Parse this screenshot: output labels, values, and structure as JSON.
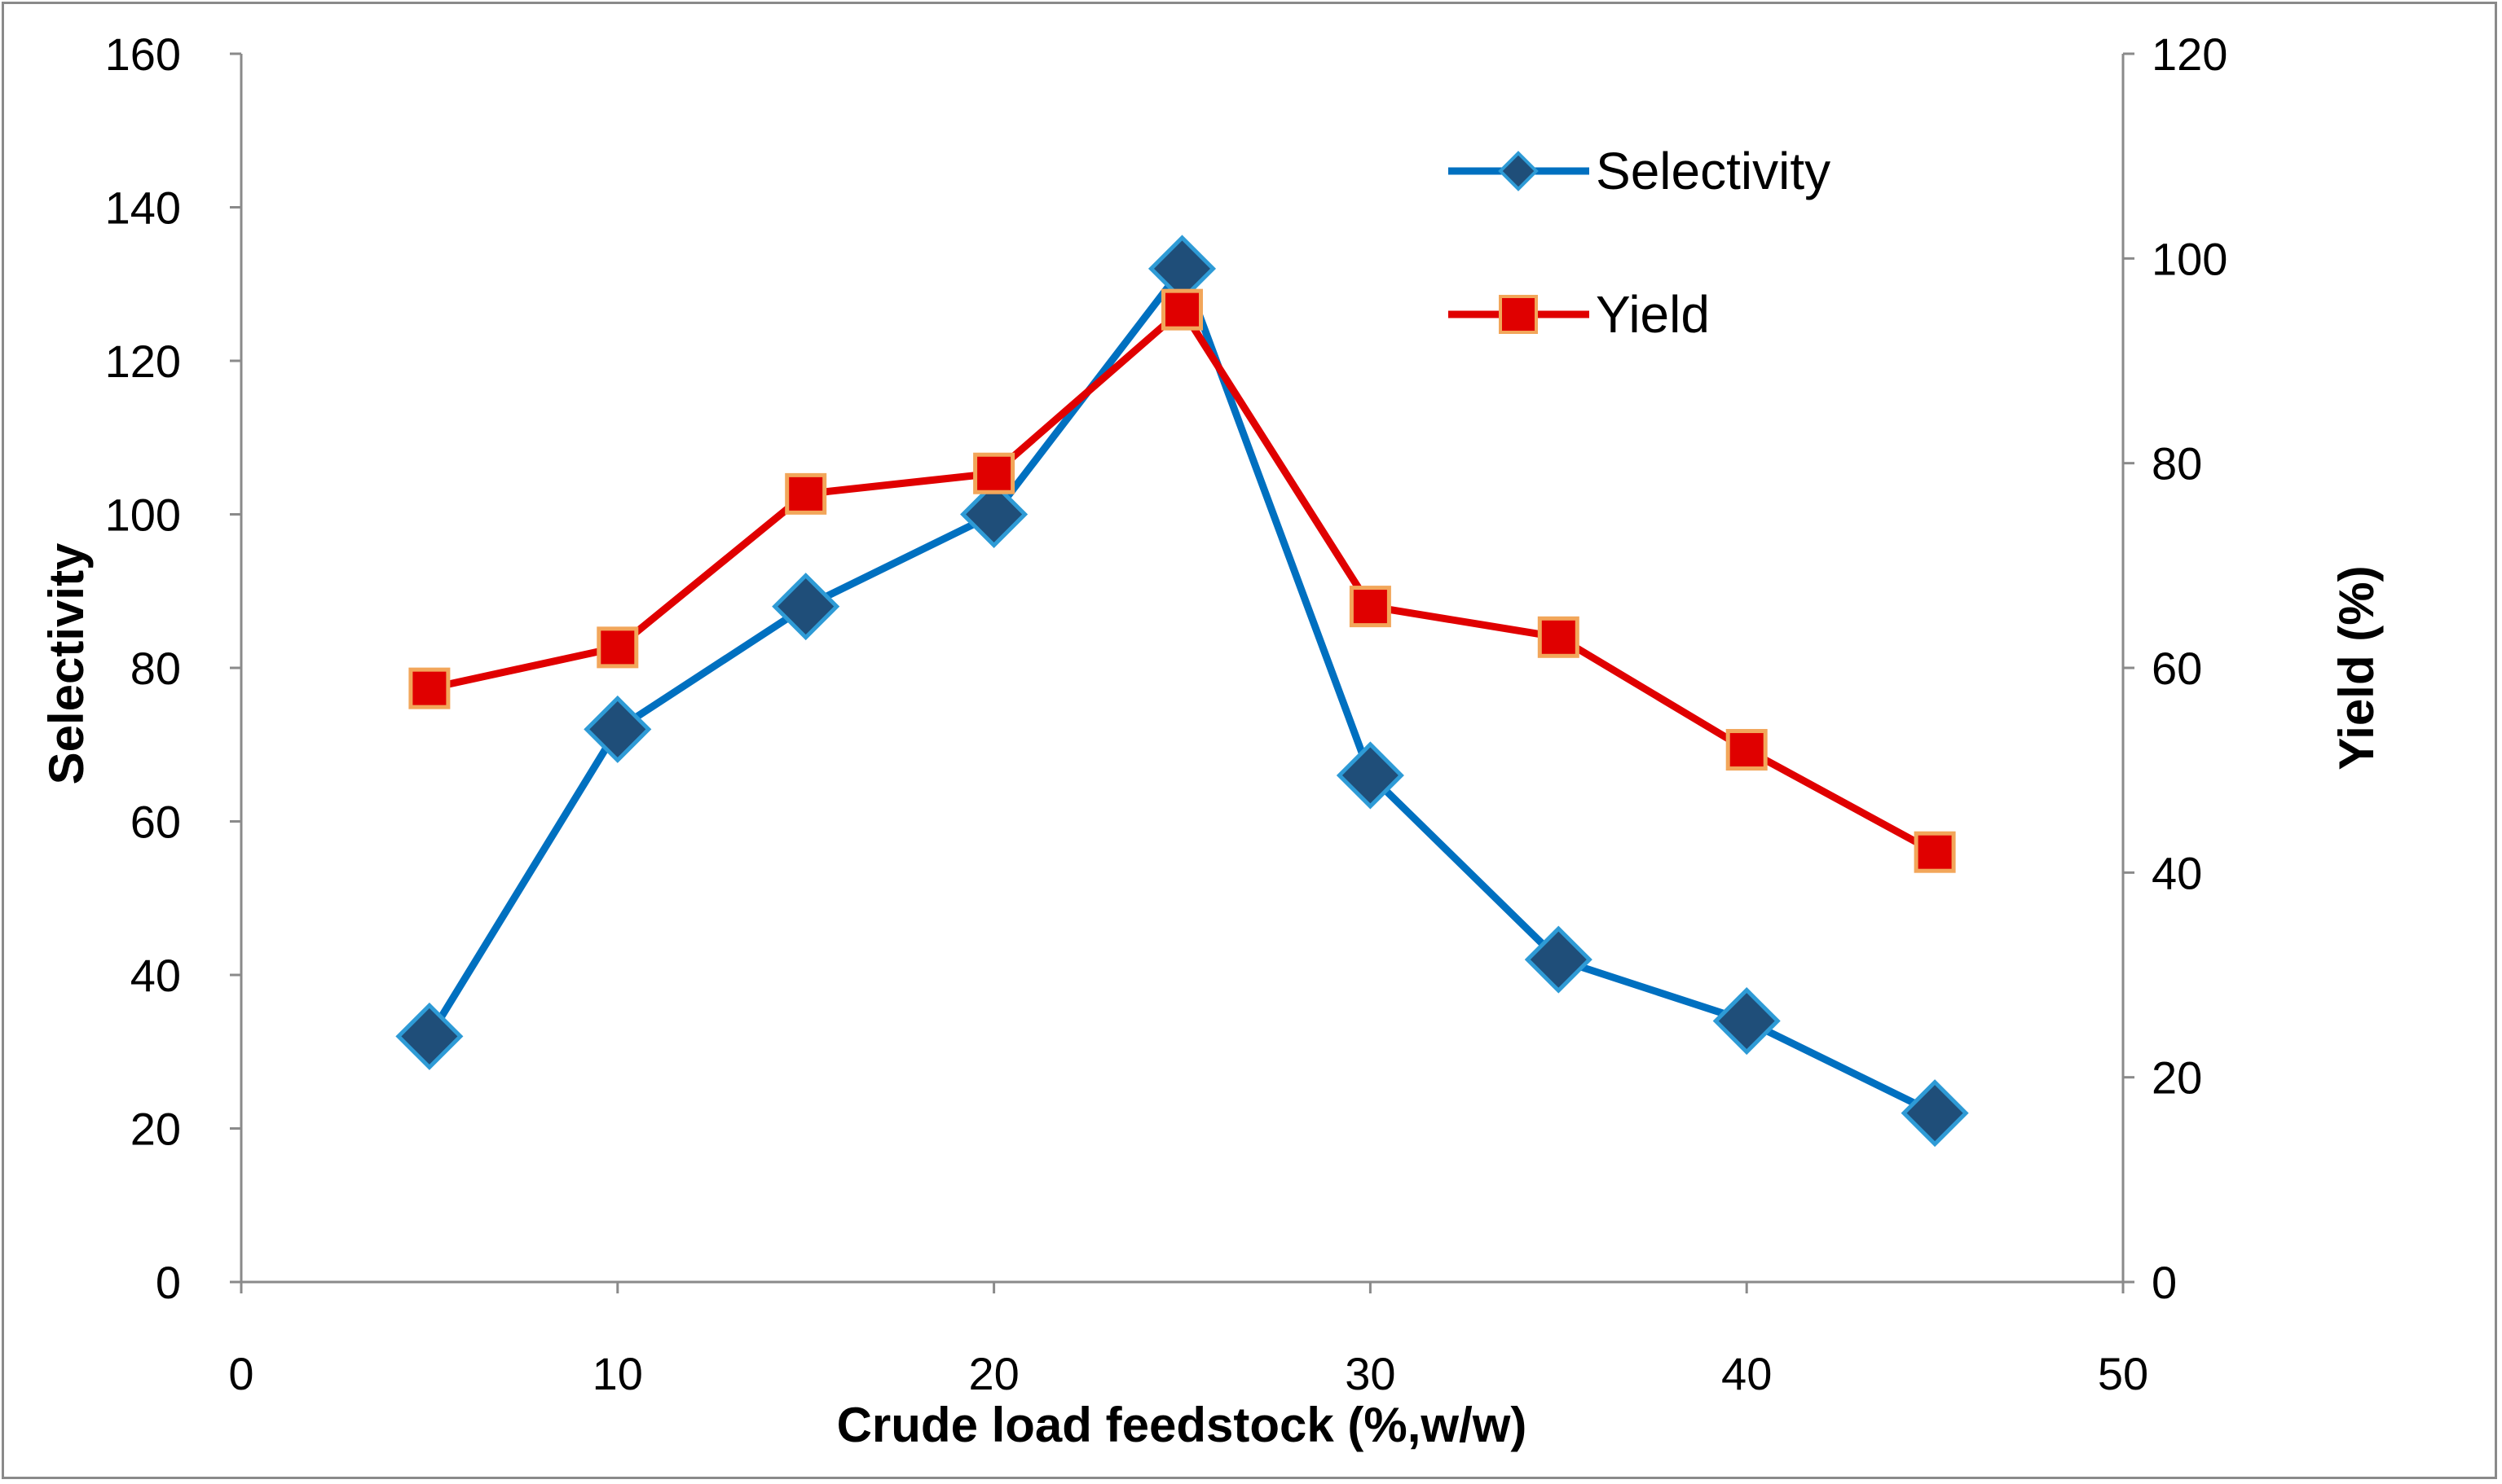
{
  "chart_data": {
    "type": "line",
    "title": "",
    "xlabel": "Crude load feedstock (%,w/w)",
    "ylabel": "Selectivity",
    "y2label": "Yield (%)",
    "x": [
      5,
      10,
      15,
      20,
      25,
      30,
      35,
      40,
      45
    ],
    "xlim": [
      0,
      50
    ],
    "ylim": [
      0,
      160
    ],
    "y2lim": [
      0,
      120
    ],
    "xticks": [
      "0",
      "10",
      "20",
      "30",
      "40",
      "50"
    ],
    "yticks": [
      "0",
      "20",
      "40",
      "60",
      "80",
      "100",
      "120",
      "140",
      "160"
    ],
    "y2ticks": [
      "0",
      "20",
      "40",
      "60",
      "80",
      "100",
      "120"
    ],
    "grid": false,
    "legend_position": "top-right",
    "series": [
      {
        "name": "Selectivity",
        "axis": "left",
        "marker": "diamond",
        "color": "#0070C0",
        "marker_fill": "#1F4E79",
        "values": [
          32,
          72,
          88,
          100,
          132,
          66,
          42,
          34,
          22
        ]
      },
      {
        "name": "Yield",
        "axis": "right",
        "marker": "square",
        "color": "#E00000",
        "marker_fill": "#E00000",
        "marker_edge": "#F2A65A",
        "values": [
          58,
          62,
          77,
          79,
          95,
          66,
          63,
          52,
          42
        ]
      }
    ]
  }
}
